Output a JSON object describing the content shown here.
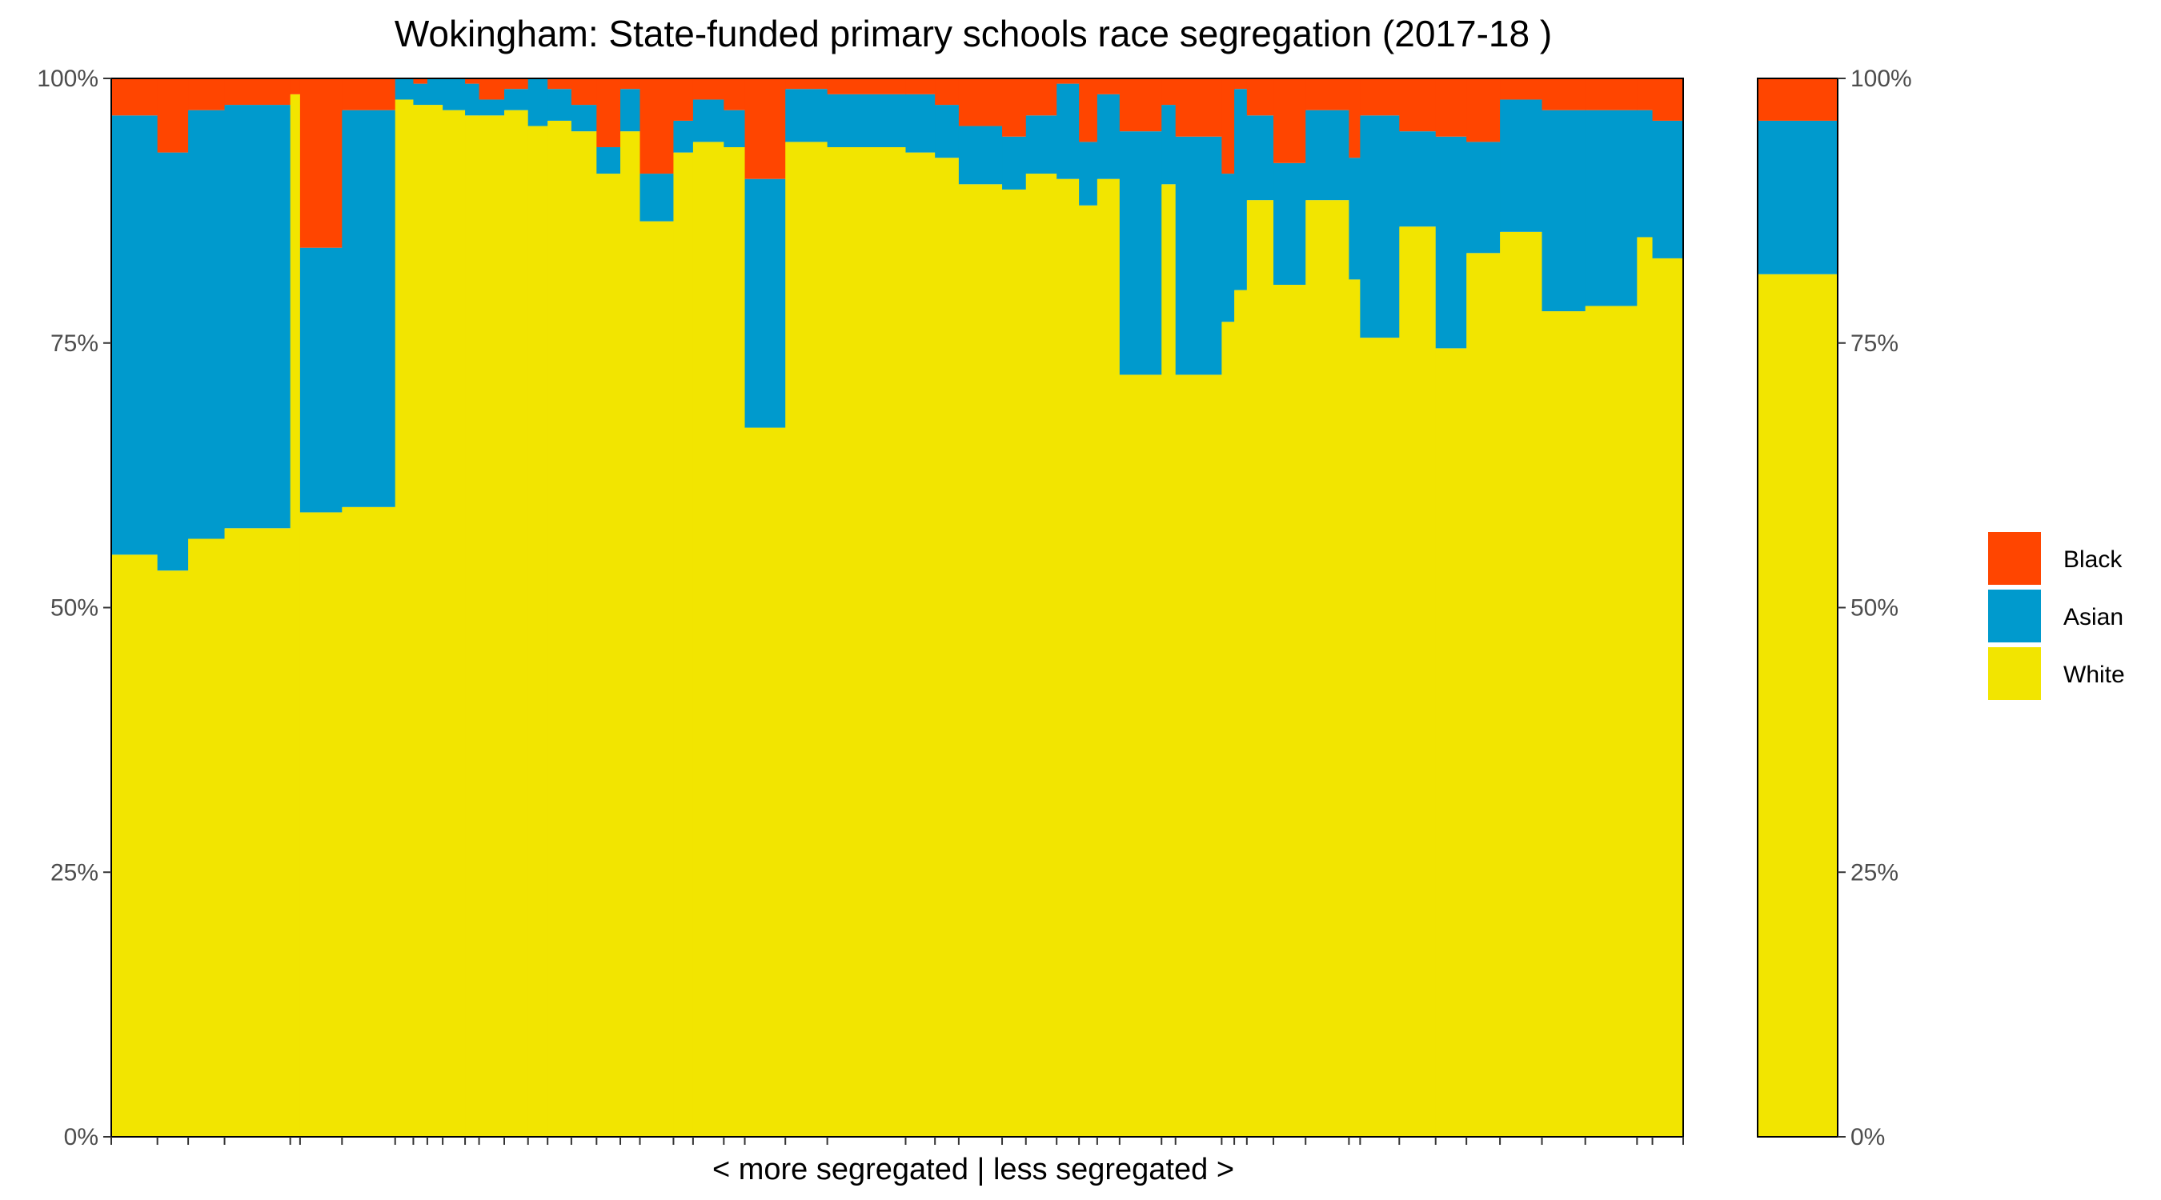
{
  "chart_data": {
    "type": "bar",
    "subtype": "stacked-variable-width-percent",
    "title": "Wokingham: State-funded primary schools race segregation (2017-18 )",
    "xlabel": "< more segregated | less segregated >",
    "ylabel": "",
    "ylim": [
      0,
      100
    ],
    "y_ticks": [
      "0%",
      "25%",
      "50%",
      "75%",
      "100%"
    ],
    "y_ticks_right": [
      "0%",
      "25%",
      "50%",
      "75%",
      "100%"
    ],
    "grid": false,
    "legend_position": "right",
    "stack_order_bottom_to_top": [
      "White",
      "Asian",
      "Black"
    ],
    "series_legend": [
      {
        "name": "Black",
        "color": "#FF4500"
      },
      {
        "name": "Asian",
        "color": "#009ACD"
      },
      {
        "name": "White",
        "color": "#F2E500"
      }
    ],
    "schools": [
      {
        "w": 33,
        "white": 55.0,
        "asian": 41.5
      },
      {
        "w": 22,
        "white": 53.5,
        "asian": 39.5
      },
      {
        "w": 26,
        "white": 56.5,
        "asian": 40.5
      },
      {
        "w": 47,
        "white": 57.5,
        "asian": 40.0
      },
      {
        "w": 7,
        "white": 98.5,
        "asian": 0.0
      },
      {
        "w": 30,
        "white": 59.0,
        "asian": 25.0
      },
      {
        "w": 38,
        "white": 59.5,
        "asian": 37.5
      },
      {
        "w": 13,
        "white": 98.0,
        "asian": 2.0
      },
      {
        "w": 10,
        "white": 97.5,
        "asian": 2.0
      },
      {
        "w": 11,
        "white": 97.5,
        "asian": 2.5
      },
      {
        "w": 16,
        "white": 97.0,
        "asian": 3.0
      },
      {
        "w": 10,
        "white": 96.5,
        "asian": 3.0
      },
      {
        "w": 18,
        "white": 96.5,
        "asian": 1.5
      },
      {
        "w": 17,
        "white": 97.0,
        "asian": 2.0
      },
      {
        "w": 14,
        "white": 95.5,
        "asian": 4.5
      },
      {
        "w": 17,
        "white": 96.0,
        "asian": 3.0
      },
      {
        "w": 18,
        "white": 95.0,
        "asian": 2.5
      },
      {
        "w": 17,
        "white": 91.0,
        "asian": 2.5
      },
      {
        "w": 14,
        "white": 95.0,
        "asian": 4.0
      },
      {
        "w": 24,
        "white": 86.5,
        "asian": 4.5
      },
      {
        "w": 14,
        "white": 93.0,
        "asian": 3.0
      },
      {
        "w": 22,
        "white": 94.0,
        "asian": 4.0
      },
      {
        "w": 15,
        "white": 93.5,
        "asian": 3.5
      },
      {
        "w": 29,
        "white": 67.0,
        "asian": 23.5
      },
      {
        "w": 30,
        "white": 94.0,
        "asian": 5.0
      },
      {
        "w": 56,
        "white": 93.5,
        "asian": 5.0
      },
      {
        "w": 21,
        "white": 93.0,
        "asian": 5.5
      },
      {
        "w": 17,
        "white": 92.5,
        "asian": 5.0
      },
      {
        "w": 31,
        "white": 90.0,
        "asian": 5.5
      },
      {
        "w": 17,
        "white": 89.5,
        "asian": 5.0
      },
      {
        "w": 22,
        "white": 91.0,
        "asian": 5.5
      },
      {
        "w": 16,
        "white": 90.5,
        "asian": 9.0
      },
      {
        "w": 13,
        "white": 88.0,
        "asian": 6.0
      },
      {
        "w": 16,
        "white": 90.5,
        "asian": 8.0
      },
      {
        "w": 30,
        "white": 72.0,
        "asian": 23.0
      },
      {
        "w": 10,
        "white": 90.0,
        "asian": 7.5
      },
      {
        "w": 33,
        "white": 72.0,
        "asian": 22.5
      },
      {
        "w": 9,
        "white": 77.0,
        "asian": 14.0
      },
      {
        "w": 9,
        "white": 80.0,
        "asian": 19.0
      },
      {
        "w": 19,
        "white": 88.5,
        "asian": 8.0
      },
      {
        "w": 23,
        "white": 80.5,
        "asian": 11.5
      },
      {
        "w": 31,
        "white": 88.5,
        "asian": 8.5
      },
      {
        "w": 8,
        "white": 81.0,
        "asian": 11.5
      },
      {
        "w": 28,
        "white": 75.5,
        "asian": 21.0
      },
      {
        "w": 26,
        "white": 86.0,
        "asian": 9.0
      },
      {
        "w": 22,
        "white": 74.5,
        "asian": 20.0
      },
      {
        "w": 24,
        "white": 83.5,
        "asian": 10.5
      },
      {
        "w": 30,
        "white": 85.5,
        "asian": 12.5
      },
      {
        "w": 31,
        "white": 78.0,
        "asian": 19.0
      },
      {
        "w": 37,
        "white": 78.5,
        "asian": 18.5
      },
      {
        "w": 11,
        "white": 85.0,
        "asian": 12.0
      },
      {
        "w": 22,
        "white": 83.0,
        "asian": 13.0
      }
    ],
    "overall": {
      "white": 81.5,
      "asian": 14.5
    }
  }
}
